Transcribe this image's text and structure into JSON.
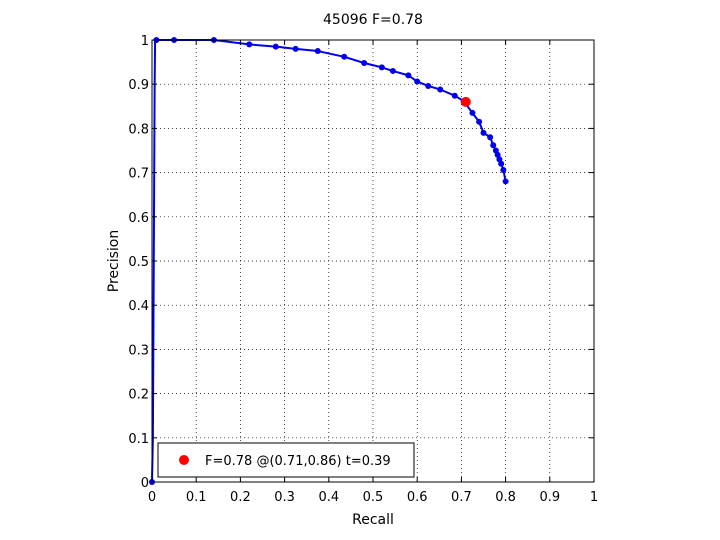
{
  "chart_data": {
    "type": "line",
    "title": "45096 F=0.78",
    "xlabel": "Recall",
    "ylabel": "Precision",
    "xlim": [
      0,
      1
    ],
    "ylim": [
      0,
      1
    ],
    "xticks": [
      "0",
      "0.1",
      "0.2",
      "0.3",
      "0.4",
      "0.5",
      "0.6",
      "0.7",
      "0.8",
      "0.9",
      "1"
    ],
    "yticks": [
      "0",
      "0.1",
      "0.2",
      "0.3",
      "0.4",
      "0.5",
      "0.6",
      "0.7",
      "0.8",
      "0.9",
      "1"
    ],
    "grid": true,
    "legend_position": "bottom-left",
    "series": [
      {
        "color": "#0000ee",
        "points": [
          [
            0.0,
            0.0
          ],
          [
            0.002,
            0.1
          ],
          [
            0.003,
            0.3
          ],
          [
            0.004,
            0.5
          ],
          [
            0.005,
            0.7
          ],
          [
            0.006,
            0.9
          ],
          [
            0.007,
            1.0
          ],
          [
            0.01,
            1.0
          ],
          [
            0.05,
            1.0
          ],
          [
            0.14,
            1.0
          ],
          [
            0.22,
            0.99
          ],
          [
            0.28,
            0.985
          ],
          [
            0.325,
            0.98
          ],
          [
            0.375,
            0.975
          ],
          [
            0.435,
            0.962
          ],
          [
            0.48,
            0.948
          ],
          [
            0.52,
            0.938
          ],
          [
            0.545,
            0.93
          ],
          [
            0.58,
            0.92
          ],
          [
            0.6,
            0.906
          ],
          [
            0.625,
            0.896
          ],
          [
            0.652,
            0.888
          ],
          [
            0.685,
            0.874
          ],
          [
            0.705,
            0.862
          ],
          [
            0.725,
            0.835
          ],
          [
            0.74,
            0.815
          ],
          [
            0.75,
            0.79
          ],
          [
            0.765,
            0.78
          ],
          [
            0.772,
            0.762
          ],
          [
            0.778,
            0.75
          ],
          [
            0.782,
            0.74
          ],
          [
            0.786,
            0.73
          ],
          [
            0.79,
            0.72
          ],
          [
            0.795,
            0.706
          ],
          [
            0.8,
            0.68
          ]
        ],
        "marker_points": [
          [
            0.0,
            0.0
          ],
          [
            0.01,
            1.0
          ],
          [
            0.05,
            1.0
          ],
          [
            0.14,
            1.0
          ],
          [
            0.22,
            0.99
          ],
          [
            0.28,
            0.985
          ],
          [
            0.325,
            0.98
          ],
          [
            0.375,
            0.975
          ],
          [
            0.435,
            0.962
          ],
          [
            0.48,
            0.948
          ],
          [
            0.52,
            0.938
          ],
          [
            0.545,
            0.93
          ],
          [
            0.58,
            0.92
          ],
          [
            0.6,
            0.906
          ],
          [
            0.625,
            0.896
          ],
          [
            0.652,
            0.888
          ],
          [
            0.685,
            0.874
          ],
          [
            0.705,
            0.862
          ],
          [
            0.725,
            0.835
          ],
          [
            0.74,
            0.815
          ],
          [
            0.75,
            0.79
          ],
          [
            0.765,
            0.78
          ],
          [
            0.772,
            0.762
          ],
          [
            0.778,
            0.75
          ],
          [
            0.782,
            0.74
          ],
          [
            0.786,
            0.73
          ],
          [
            0.79,
            0.72
          ],
          [
            0.795,
            0.706
          ],
          [
            0.8,
            0.68
          ]
        ]
      }
    ],
    "highlight_point": {
      "x": 0.71,
      "y": 0.86,
      "color": "#ff0000",
      "label": "F=0.78 @(0.71,0.86) t=0.39"
    }
  }
}
